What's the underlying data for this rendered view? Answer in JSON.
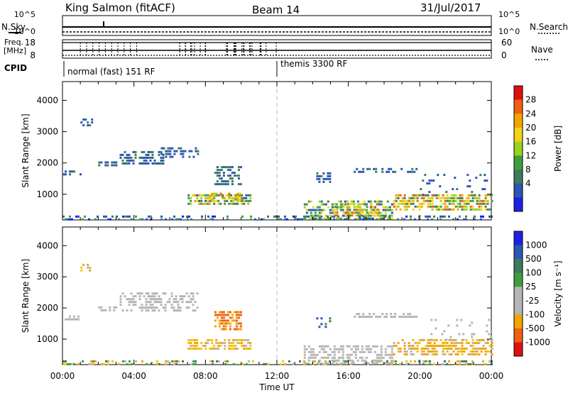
{
  "header": {
    "station": "King Salmon (fitACF)",
    "beam": "Beam 14",
    "date": "31/Jul/2017"
  },
  "status_panels": {
    "nsky_label": "N.Sky",
    "nsearch_label": "N.Search",
    "noise_ticks": [
      "10^5",
      "10^0"
    ],
    "freq_label": "Freq.",
    "freq_unit": "[MHz]",
    "freq_ticks": [
      "18",
      "8"
    ],
    "nave_label": "Nave",
    "nave_ticks": [
      "60",
      "0"
    ],
    "cpid_label": "CPID",
    "cpid_segments": [
      {
        "label": "normal (fast) 151 RF",
        "start_hour": 0
      },
      {
        "label": "themis 3300 RF",
        "start_hour": 12
      }
    ]
  },
  "colors": {
    "power_scale": [
      "#1f1fe6",
      "#2a56b4",
      "#3f7a5c",
      "#3e9e3e",
      "#9bd21f",
      "#f2d21a",
      "#f2a500",
      "#f06010",
      "#e01010"
    ],
    "velocity_scale": [
      "#1f1fe6",
      "#2a56b4",
      "#3f7a5c",
      "#3e9e3e",
      "#b5b5b5",
      "#b5b5b5",
      "#f2a500",
      "#f06010",
      "#e01010"
    ]
  },
  "chart_data": [
    {
      "type": "heatmap",
      "name": "Power",
      "xlabel": "Time UT",
      "ylabel": "Slant Range [km]",
      "x_ticks": [
        "00:00",
        "04:00",
        "08:00",
        "12:00",
        "16:00",
        "20:00",
        "00:00"
      ],
      "xlim_hours": [
        0,
        24
      ],
      "ylim_km": [
        180,
        4600
      ],
      "y_ticks": [
        1000,
        2000,
        3000,
        4000
      ],
      "colorbar_label": "Power [dB]",
      "colorbar_ticks": [
        "28",
        "24",
        "20",
        "16",
        "12",
        "8",
        "4"
      ],
      "regions": [
        {
          "t0": 0.0,
          "t1": 24.0,
          "r0": 180,
          "r1": 320,
          "lo": 2,
          "hi": 12,
          "dens": 0.35
        },
        {
          "t0": 1.0,
          "t1": 1.6,
          "r0": 3180,
          "r1": 3420,
          "lo": 4,
          "hi": 8,
          "dens": 0.55
        },
        {
          "t0": 0.0,
          "t1": 1.0,
          "r0": 1600,
          "r1": 1760,
          "lo": 4,
          "hi": 8,
          "dens": 0.45
        },
        {
          "t0": 2.0,
          "t1": 3.0,
          "r0": 1920,
          "r1": 2050,
          "lo": 4,
          "hi": 8,
          "dens": 0.6
        },
        {
          "t0": 3.2,
          "t1": 5.8,
          "r0": 1950,
          "r1": 2380,
          "lo": 4,
          "hi": 10,
          "dens": 0.55
        },
        {
          "t0": 5.5,
          "t1": 7.6,
          "r0": 2150,
          "r1": 2500,
          "lo": 4,
          "hi": 8,
          "dens": 0.4
        },
        {
          "t0": 7.0,
          "t1": 10.5,
          "r0": 700,
          "r1": 1000,
          "lo": 6,
          "hi": 24,
          "dens": 0.7
        },
        {
          "t0": 8.2,
          "t1": 10.0,
          "r0": 850,
          "r1": 1050,
          "lo": 14,
          "hi": 28,
          "dens": 0.6
        },
        {
          "t0": 8.5,
          "t1": 10.0,
          "r0": 1350,
          "r1": 1900,
          "lo": 4,
          "hi": 12,
          "dens": 0.55
        },
        {
          "t0": 14.2,
          "t1": 15.0,
          "r0": 1350,
          "r1": 1700,
          "lo": 4,
          "hi": 8,
          "dens": 0.45
        },
        {
          "t0": 16.3,
          "t1": 19.8,
          "r0": 1680,
          "r1": 1840,
          "lo": 4,
          "hi": 8,
          "dens": 0.6
        },
        {
          "t0": 13.5,
          "t1": 18.5,
          "r0": 250,
          "r1": 800,
          "lo": 4,
          "hi": 20,
          "dens": 0.5
        },
        {
          "t0": 15.2,
          "t1": 17.6,
          "r0": 280,
          "r1": 720,
          "lo": 12,
          "hi": 28,
          "dens": 0.6
        },
        {
          "t0": 18.5,
          "t1": 24.0,
          "r0": 500,
          "r1": 1000,
          "lo": 8,
          "hi": 28,
          "dens": 0.65
        },
        {
          "t0": 20.0,
          "t1": 24.0,
          "r0": 1000,
          "r1": 1650,
          "lo": 4,
          "hi": 8,
          "dens": 0.12
        }
      ]
    },
    {
      "type": "heatmap",
      "name": "Velocity",
      "xlabel": "Time UT",
      "ylabel": "Slant Range [km]",
      "x_ticks": [
        "00:00",
        "04:00",
        "08:00",
        "12:00",
        "16:00",
        "20:00",
        "00:00"
      ],
      "xlim_hours": [
        0,
        24
      ],
      "ylim_km": [
        180,
        4600
      ],
      "y_ticks": [
        1000,
        2000,
        3000,
        4000
      ],
      "colorbar_label": "Velocity [m s⁻¹]",
      "colorbar_ticks": [
        "1000",
        "500",
        "100",
        "25",
        "-25",
        "-100",
        "-500",
        "-1000"
      ],
      "regions": [
        {
          "t0": 0.0,
          "t1": 24.0,
          "r0": 180,
          "r1": 320,
          "lo": -200,
          "hi": 200,
          "dens": 0.3
        },
        {
          "t0": 1.0,
          "t1": 1.6,
          "r0": 3180,
          "r1": 3420,
          "lo": -300,
          "hi": 20,
          "dens": 0.5
        },
        {
          "t0": 0.0,
          "t1": 1.0,
          "r0": 1600,
          "r1": 1760,
          "lo": -20,
          "hi": 20,
          "dens": 0.45
        },
        {
          "t0": 2.0,
          "t1": 3.0,
          "r0": 1920,
          "r1": 2050,
          "lo": -20,
          "hi": 20,
          "dens": 0.55
        },
        {
          "t0": 3.2,
          "t1": 7.6,
          "r0": 1950,
          "r1": 2500,
          "lo": -20,
          "hi": 20,
          "dens": 0.45
        },
        {
          "t0": 7.0,
          "t1": 10.5,
          "r0": 700,
          "r1": 1000,
          "lo": -150,
          "hi": 20,
          "dens": 0.65
        },
        {
          "t0": 8.5,
          "t1": 10.0,
          "r0": 1350,
          "r1": 1900,
          "lo": -700,
          "hi": -110,
          "dens": 0.6
        },
        {
          "t0": 14.2,
          "t1": 15.0,
          "r0": 1350,
          "r1": 1700,
          "lo": 30,
          "hi": 600,
          "dens": 0.45
        },
        {
          "t0": 16.3,
          "t1": 19.8,
          "r0": 1680,
          "r1": 1840,
          "lo": -20,
          "hi": 20,
          "dens": 0.55
        },
        {
          "t0": 13.5,
          "t1": 18.5,
          "r0": 250,
          "r1": 800,
          "lo": -20,
          "hi": 20,
          "dens": 0.55
        },
        {
          "t0": 18.5,
          "t1": 24.0,
          "r0": 500,
          "r1": 1000,
          "lo": -300,
          "hi": 20,
          "dens": 0.6
        },
        {
          "t0": 20.0,
          "t1": 24.0,
          "r0": 1000,
          "r1": 1650,
          "lo": -20,
          "hi": 20,
          "dens": 0.12
        }
      ]
    }
  ]
}
